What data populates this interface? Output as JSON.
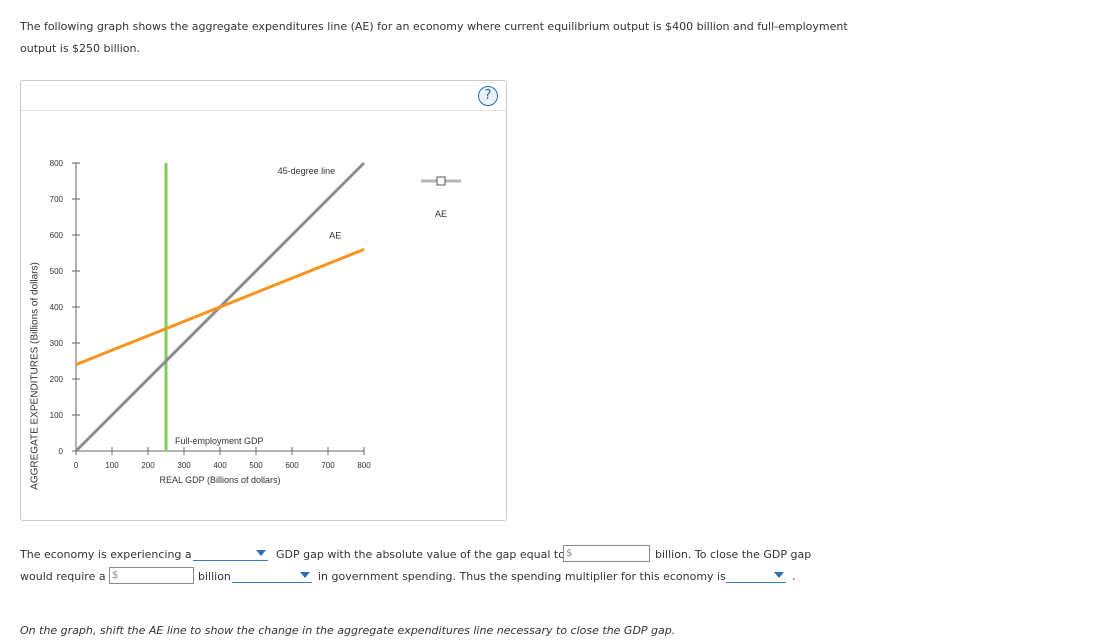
{
  "intro_text": "The following graph shows the aggregate expenditures line (AE) for an economy where current equilibrium output is $400 billion and full-employment output is $250 billion.",
  "help_label": "?",
  "chart_data": {
    "type": "line",
    "xlabel": "REAL GDP (Billions of dollars)",
    "ylabel": "AGGREGATE EXPENDITURES (Billions of dollars)",
    "xlim": [
      0,
      800
    ],
    "ylim": [
      0,
      800
    ],
    "x_ticks": [
      0,
      100,
      200,
      300,
      400,
      500,
      600,
      700,
      800
    ],
    "y_ticks": [
      0,
      100,
      200,
      300,
      400,
      500,
      600,
      700,
      800
    ],
    "series": [
      {
        "name": "45-degree line",
        "color": "#8c8c8c",
        "points": [
          [
            0,
            0
          ],
          [
            800,
            800
          ]
        ]
      },
      {
        "name": "AE",
        "color": "#f7941d",
        "points": [
          [
            0,
            240
          ],
          [
            800,
            560
          ]
        ]
      },
      {
        "name": "Full-employment GDP",
        "color": "#7ccc5a",
        "points": [
          [
            250,
            0
          ],
          [
            250,
            800
          ]
        ]
      }
    ],
    "legend": {
      "label": "AE",
      "placement": "right"
    }
  },
  "question": {
    "part1": "The economy is experiencing a",
    "part2": "GDP gap with the absolute value of the gap equal to",
    "part3": "billion. To close the GDP gap",
    "part4": "would require a",
    "part5": "billion",
    "part6": "in government spending. Thus the spending multiplier for this economy is",
    "part7": ".",
    "currency": "$"
  },
  "instruction": "On the graph, shift the AE line to show the change in the aggregate expenditures line necessary to close the GDP gap."
}
